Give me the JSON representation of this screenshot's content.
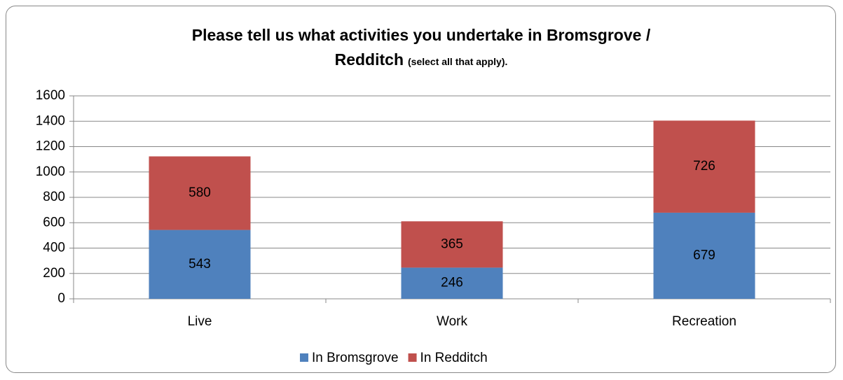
{
  "chart_data": {
    "type": "stacked_bar",
    "title": "Please tell us what activities you undertake in Bromsgrove / Redditch",
    "subtitle": "(select all that apply).",
    "categories": [
      "Live",
      "Work",
      "Recreation"
    ],
    "series": [
      {
        "name": "In Bromsgrove",
        "color": "#4f81bd",
        "values": [
          543,
          246,
          679
        ]
      },
      {
        "name": "In Redditch",
        "color": "#c0504d",
        "values": [
          580,
          365,
          726
        ]
      }
    ],
    "ylim": [
      0,
      1600
    ],
    "yticks": [
      0,
      200,
      400,
      600,
      800,
      1000,
      1200,
      1400,
      1600
    ],
    "grid": true,
    "legend": "bottom"
  }
}
